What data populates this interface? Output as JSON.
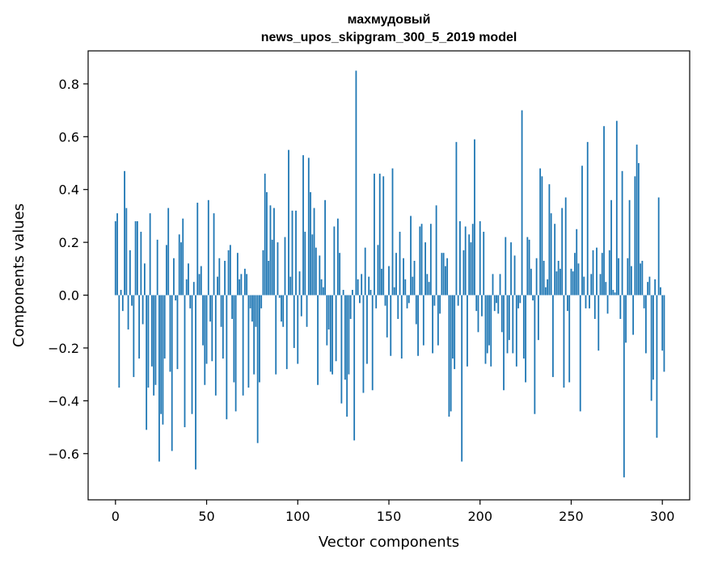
{
  "chart_data": {
    "type": "bar",
    "title": "махмудовый",
    "subtitle": "news_upos_skipgram_300_5_2019 model",
    "xlabel": "Vector components",
    "ylabel": "Components values",
    "xlim": [
      -15,
      315
    ],
    "ylim": [
      -0.775,
      0.925
    ],
    "xticks": [
      0,
      50,
      100,
      150,
      200,
      250,
      300
    ],
    "xtick_labels": [
      "0",
      "50",
      "100",
      "150",
      "200",
      "250",
      "300"
    ],
    "yticks": [
      -0.6,
      -0.4,
      -0.2,
      0.0,
      0.2,
      0.4,
      0.6,
      0.8
    ],
    "ytick_labels": [
      "−0.6",
      "−0.4",
      "−0.2",
      "0.0",
      "0.2",
      "0.4",
      "0.6",
      "0.8"
    ],
    "grid": false,
    "color": "#1f77b4",
    "values": [
      0.28,
      0.31,
      -0.35,
      0.02,
      -0.06,
      0.47,
      0.33,
      -0.13,
      0.17,
      -0.04,
      -0.31,
      0.28,
      0.28,
      -0.24,
      0.24,
      -0.11,
      0.12,
      -0.51,
      -0.35,
      0.31,
      -0.27,
      -0.38,
      -0.34,
      0.21,
      -0.63,
      -0.45,
      -0.49,
      -0.24,
      0.19,
      0.33,
      -0.29,
      -0.59,
      0.14,
      -0.02,
      -0.28,
      0.23,
      0.2,
      0.29,
      -0.5,
      0.06,
      0.12,
      -0.05,
      -0.45,
      0.05,
      -0.66,
      0.35,
      0.08,
      0.11,
      -0.19,
      -0.34,
      -0.26,
      0.36,
      -0.1,
      -0.25,
      0.31,
      -0.38,
      0.07,
      0.14,
      -0.12,
      -0.24,
      0.13,
      -0.47,
      0.17,
      0.19,
      -0.09,
      -0.33,
      -0.44,
      0.16,
      0.06,
      0.08,
      -0.38,
      0.1,
      0.08,
      -0.35,
      -0.05,
      -0.1,
      -0.3,
      -0.12,
      -0.56,
      -0.33,
      -0.05,
      0.17,
      0.46,
      0.39,
      0.13,
      0.34,
      0.21,
      0.33,
      -0.3,
      0.2,
      -0.01,
      -0.1,
      -0.12,
      0.22,
      -0.28,
      0.55,
      0.07,
      0.32,
      -0.2,
      0.32,
      -0.26,
      0.09,
      -0.08,
      0.53,
      0.24,
      -0.12,
      0.52,
      0.39,
      0.23,
      0.33,
      0.18,
      -0.34,
      0.15,
      0.06,
      0.03,
      0.36,
      -0.19,
      -0.13,
      -0.29,
      -0.3,
      0.26,
      -0.25,
      0.29,
      0.16,
      -0.41,
      0.02,
      -0.32,
      -0.46,
      -0.3,
      -0.09,
      0.02,
      -0.55,
      0.85,
      0.06,
      -0.03,
      0.08,
      -0.37,
      0.18,
      -0.26,
      0.07,
      0.02,
      -0.36,
      0.46,
      -0.05,
      0.19,
      0.46,
      0.1,
      0.45,
      -0.04,
      -0.16,
      0.11,
      -0.23,
      0.48,
      0.03,
      0.16,
      -0.09,
      0.24,
      -0.24,
      0.14,
      0.06,
      -0.05,
      -0.03,
      0.3,
      0.07,
      0.13,
      -0.11,
      -0.23,
      0.26,
      0.27,
      -0.19,
      0.2,
      0.08,
      0.05,
      0.27,
      -0.22,
      -0.04,
      0.34,
      -0.19,
      -0.07,
      0.16,
      0.16,
      0.11,
      0.14,
      -0.46,
      -0.44,
      -0.24,
      -0.28,
      0.58,
      -0.04,
      0.28,
      -0.63,
      0.17,
      0.26,
      -0.27,
      0.23,
      0.2,
      0.27,
      0.59,
      -0.06,
      -0.14,
      0.28,
      -0.08,
      0.24,
      -0.26,
      -0.22,
      -0.19,
      -0.27,
      0.08,
      -0.06,
      -0.03,
      -0.07,
      0.08,
      -0.14,
      -0.36,
      0.22,
      -0.22,
      -0.17,
      0.2,
      -0.22,
      0.15,
      -0.27,
      -0.05,
      -0.03,
      0.7,
      -0.24,
      -0.33,
      0.22,
      0.21,
      0.1,
      -0.02,
      -0.45,
      0.14,
      -0.17,
      0.48,
      0.45,
      0.13,
      0.03,
      0.06,
      0.42,
      0.31,
      -0.31,
      0.27,
      0.09,
      0.13,
      0.1,
      0.33,
      -0.35,
      0.37,
      -0.06,
      -0.33,
      0.1,
      0.09,
      0.16,
      0.25,
      0.12,
      -0.44,
      0.49,
      0.07,
      -0.05,
      0.58,
      -0.05,
      0.08,
      0.17,
      -0.09,
      0.18,
      -0.21,
      0.08,
      0.16,
      0.64,
      0.05,
      -0.07,
      0.17,
      0.36,
      0.02,
      0.01,
      0.66,
      0.14,
      -0.09,
      0.47,
      -0.69,
      -0.18,
      0.14,
      0.36,
      0.11,
      -0.15,
      0.45,
      0.57,
      0.5,
      0.12,
      0.13,
      -0.05,
      -0.22,
      0.05,
      0.07,
      -0.4,
      -0.32,
      0.06,
      -0.54,
      0.37,
      0.03,
      -0.21,
      -0.29
    ]
  }
}
